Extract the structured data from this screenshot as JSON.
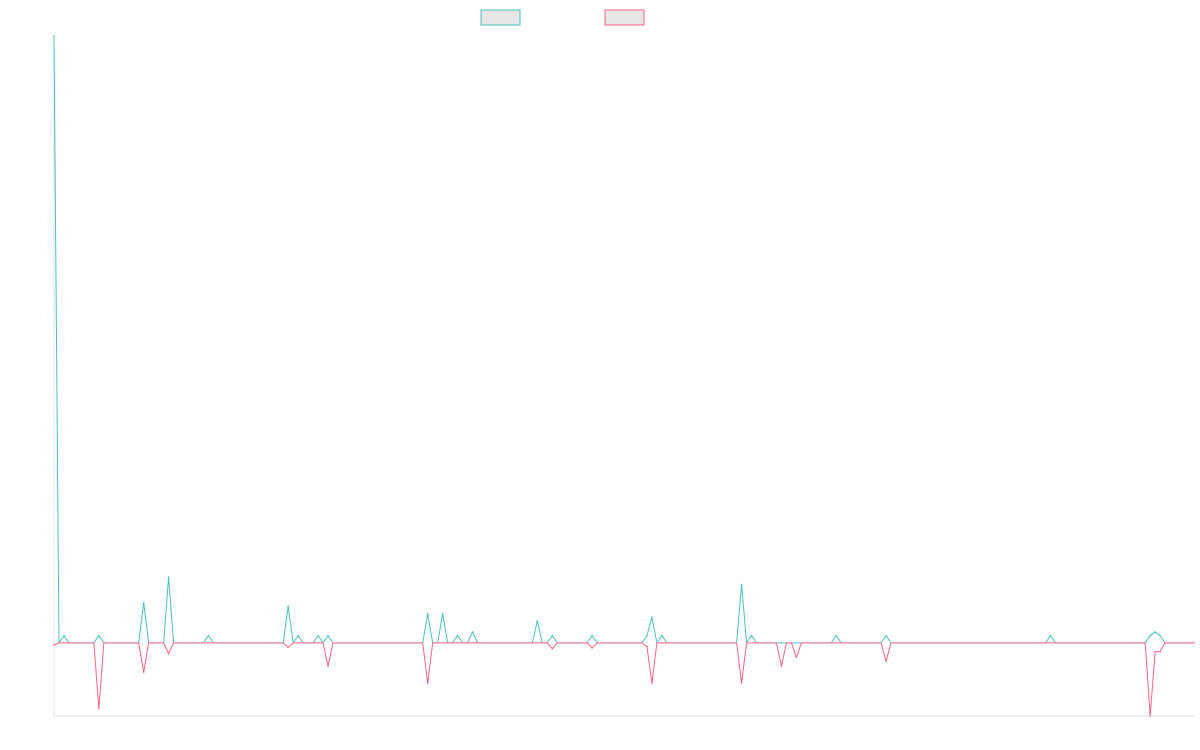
{
  "chart_data": {
    "type": "line",
    "title": "",
    "xlabel": "",
    "ylabel": "",
    "legend_position": "top-center",
    "grid": false,
    "xlim": [
      0,
      229
    ],
    "ylim": [
      -10,
      83
    ],
    "series": [
      {
        "color": "#4bc0c0",
        "legend_fill": "#e6e6e6",
        "sparse_values": [
          [
            0,
            83
          ],
          [
            2,
            1
          ],
          [
            9,
            1
          ],
          [
            18,
            5.5
          ],
          [
            23,
            9
          ],
          [
            31,
            1
          ],
          [
            47,
            5
          ],
          [
            49,
            1
          ],
          [
            53,
            1
          ],
          [
            55,
            1
          ],
          [
            75,
            4
          ],
          [
            78,
            4
          ],
          [
            81,
            1
          ],
          [
            84,
            1.5
          ],
          [
            97,
            3
          ],
          [
            100,
            1
          ],
          [
            108,
            1
          ],
          [
            119,
            1
          ],
          [
            120,
            3.5
          ],
          [
            122,
            1
          ],
          [
            138,
            8
          ],
          [
            140,
            1
          ],
          [
            157,
            1
          ],
          [
            167,
            1
          ],
          [
            200,
            1
          ],
          [
            220,
            1
          ],
          [
            221,
            1.5
          ],
          [
            222,
            1
          ]
        ]
      },
      {
        "color": "#ff6384",
        "legend_fill": "#e6e6e6",
        "sparse_values": [
          [
            0,
            -0.3
          ],
          [
            9,
            -9
          ],
          [
            18,
            -4
          ],
          [
            23,
            -1.5
          ],
          [
            47,
            -0.6
          ],
          [
            55,
            -3.2
          ],
          [
            75,
            -5.5
          ],
          [
            100,
            -0.8
          ],
          [
            108,
            -0.7
          ],
          [
            119,
            -0.5
          ],
          [
            120,
            -5.5
          ],
          [
            138,
            -5.5
          ],
          [
            146,
            -3.2
          ],
          [
            149,
            -2
          ],
          [
            167,
            -2.5
          ],
          [
            220,
            -10
          ],
          [
            221,
            -1.2
          ],
          [
            222,
            -1.2
          ]
        ]
      }
    ]
  }
}
